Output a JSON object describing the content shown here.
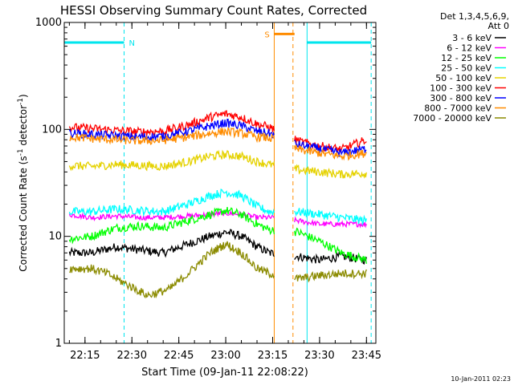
{
  "chart_data": {
    "type": "line",
    "title": "HESSI Observing Summary Count Rates, Corrected",
    "xlabel": "Start Time (09-Jan-11 22:08:22)",
    "ylabel": "Corrected Count Rate (s",
    "ylabel_sup1": "-1",
    "ylabel_mid": " detector",
    "ylabel_sup2": "-1",
    "ylabel_end": ")",
    "yscale": "log",
    "ylim": [
      1,
      1000
    ],
    "xlim": [
      "22:08:22",
      "23:48:00"
    ],
    "x_ticks": [
      "22:15",
      "22:30",
      "22:45",
      "23:00",
      "23:15",
      "23:30",
      "23:45"
    ],
    "y_ticks": [
      "1",
      "10",
      "100",
      "1000"
    ],
    "grid": false,
    "legend_position": "right",
    "legend_header": [
      "Det 1,3,4,5,6,9,",
      "Att 0"
    ],
    "footer_date": "10-Jan-2011 02:23",
    "flags": [
      {
        "label": "N",
        "color": "#00e5ee",
        "start": "22:08:22",
        "end": "22:27:30",
        "level": 650
      },
      {
        "label": "S",
        "color": "#ff8c00",
        "start": "23:15:30",
        "end": "23:22:00",
        "level": 780
      },
      {
        "label": "",
        "color": "#00e5ee",
        "start": "23:26:00",
        "end": "23:46:30",
        "level": 650
      }
    ],
    "vertical_markers": [
      {
        "time": "22:08:22",
        "color": "#00e5ee",
        "style": "solid"
      },
      {
        "time": "22:27:30",
        "color": "#00e5ee",
        "style": "dashed"
      },
      {
        "time": "23:15:30",
        "color": "#ff8c00",
        "style": "solid"
      },
      {
        "time": "23:21:30",
        "color": "#ff8c00",
        "style": "dashed"
      },
      {
        "time": "23:26:00",
        "color": "#00e5ee",
        "style": "solid"
      },
      {
        "time": "23:46:30",
        "color": "#00e5ee",
        "style": "dashed"
      }
    ],
    "data_gap": [
      "23:15:30",
      "23:22:00"
    ],
    "series": [
      {
        "name": "3 - 6 keV",
        "color": "#000000",
        "points": [
          [
            "22:10",
            7
          ],
          [
            "22:17",
            7
          ],
          [
            "22:25",
            8
          ],
          [
            "22:32",
            7.5
          ],
          [
            "22:40",
            7
          ],
          [
            "22:48",
            8.5
          ],
          [
            "22:55",
            10
          ],
          [
            "23:00",
            11
          ],
          [
            "23:05",
            10
          ],
          [
            "23:10",
            8
          ],
          [
            "23:14",
            7
          ],
          [
            "23:23",
            6.5
          ],
          [
            "23:30",
            6
          ],
          [
            "23:37",
            6.5
          ],
          [
            "23:45",
            6
          ]
        ]
      },
      {
        "name": "6 - 12 keV",
        "color": "#ff00ff",
        "points": [
          [
            "22:10",
            16
          ],
          [
            "22:17",
            15
          ],
          [
            "22:25",
            15.5
          ],
          [
            "22:32",
            15
          ],
          [
            "22:40",
            15
          ],
          [
            "22:48",
            15.5
          ],
          [
            "22:55",
            16
          ],
          [
            "23:00",
            16.5
          ],
          [
            "23:05",
            16
          ],
          [
            "23:10",
            15
          ],
          [
            "23:14",
            15
          ],
          [
            "23:23",
            14
          ],
          [
            "23:30",
            13
          ],
          [
            "23:37",
            13
          ],
          [
            "23:45",
            13
          ]
        ]
      },
      {
        "name": "12 - 25 keV",
        "color": "#00ff00",
        "points": [
          [
            "22:10",
            9.5
          ],
          [
            "22:17",
            10
          ],
          [
            "22:25",
            12
          ],
          [
            "22:32",
            12.5
          ],
          [
            "22:40",
            12
          ],
          [
            "22:48",
            14
          ],
          [
            "22:55",
            16
          ],
          [
            "23:00",
            17.5
          ],
          [
            "23:05",
            16
          ],
          [
            "23:10",
            13
          ],
          [
            "23:14",
            11.5
          ],
          [
            "23:23",
            11
          ],
          [
            "23:30",
            9
          ],
          [
            "23:37",
            7
          ],
          [
            "23:45",
            6
          ]
        ]
      },
      {
        "name": "25 - 50 keV",
        "color": "#00ffff",
        "points": [
          [
            "22:10",
            17
          ],
          [
            "22:17",
            17
          ],
          [
            "22:25",
            18
          ],
          [
            "22:32",
            17.5
          ],
          [
            "22:40",
            17
          ],
          [
            "22:48",
            20
          ],
          [
            "22:55",
            24
          ],
          [
            "23:00",
            26
          ],
          [
            "23:05",
            24
          ],
          [
            "23:10",
            19
          ],
          [
            "23:14",
            17
          ],
          [
            "23:23",
            17
          ],
          [
            "23:30",
            16
          ],
          [
            "23:37",
            15
          ],
          [
            "23:45",
            14
          ]
        ]
      },
      {
        "name": "50 - 100 keV",
        "color": "#e5d200",
        "points": [
          [
            "22:10",
            46
          ],
          [
            "22:17",
            45
          ],
          [
            "22:25",
            47
          ],
          [
            "22:32",
            46
          ],
          [
            "22:40",
            45
          ],
          [
            "22:48",
            50
          ],
          [
            "22:55",
            56
          ],
          [
            "23:00",
            58
          ],
          [
            "23:05",
            56
          ],
          [
            "23:10",
            50
          ],
          [
            "23:14",
            47
          ],
          [
            "23:23",
            42
          ],
          [
            "23:30",
            40
          ],
          [
            "23:37",
            38
          ],
          [
            "23:45",
            39
          ]
        ]
      },
      {
        "name": "100 - 300 keV",
        "color": "#ff0000",
        "points": [
          [
            "22:10",
            105
          ],
          [
            "22:17",
            102
          ],
          [
            "22:25",
            98
          ],
          [
            "22:32",
            95
          ],
          [
            "22:40",
            96
          ],
          [
            "22:48",
            110
          ],
          [
            "22:55",
            130
          ],
          [
            "23:00",
            140
          ],
          [
            "23:05",
            130
          ],
          [
            "23:10",
            112
          ],
          [
            "23:14",
            105
          ],
          [
            "23:23",
            78
          ],
          [
            "23:30",
            70
          ],
          [
            "23:37",
            65
          ],
          [
            "23:45",
            80
          ]
        ]
      },
      {
        "name": "300 - 800 keV",
        "color": "#0000ff",
        "points": [
          [
            "22:10",
            92
          ],
          [
            "22:17",
            90
          ],
          [
            "22:25",
            87
          ],
          [
            "22:32",
            85
          ],
          [
            "22:40",
            86
          ],
          [
            "22:48",
            96
          ],
          [
            "22:55",
            108
          ],
          [
            "23:00",
            115
          ],
          [
            "23:05",
            108
          ],
          [
            "23:10",
            96
          ],
          [
            "23:14",
            92
          ],
          [
            "23:23",
            72
          ],
          [
            "23:30",
            66
          ],
          [
            "23:37",
            60
          ],
          [
            "23:45",
            66
          ]
        ]
      },
      {
        "name": "800 - 7000 keV",
        "color": "#ff8c00",
        "points": [
          [
            "22:10",
            85
          ],
          [
            "22:17",
            82
          ],
          [
            "22:25",
            80
          ],
          [
            "22:32",
            78
          ],
          [
            "22:40",
            79
          ],
          [
            "22:48",
            85
          ],
          [
            "22:55",
            92
          ],
          [
            "23:00",
            96
          ],
          [
            "23:05",
            92
          ],
          [
            "23:10",
            85
          ],
          [
            "23:14",
            83
          ],
          [
            "23:23",
            65
          ],
          [
            "23:30",
            60
          ],
          [
            "23:37",
            56
          ],
          [
            "23:45",
            60
          ]
        ]
      },
      {
        "name": "7000 - 20000 keV",
        "color": "#8b8b00",
        "points": [
          [
            "22:10",
            5
          ],
          [
            "22:17",
            5
          ],
          [
            "22:22",
            4.5
          ],
          [
            "22:28",
            3.6
          ],
          [
            "22:35",
            2.8
          ],
          [
            "22:42",
            3.2
          ],
          [
            "22:48",
            4.5
          ],
          [
            "22:55",
            7
          ],
          [
            "23:00",
            8.5
          ],
          [
            "23:05",
            7
          ],
          [
            "23:10",
            5
          ],
          [
            "23:14",
            4.5
          ],
          [
            "23:23",
            4
          ],
          [
            "23:30",
            4.3
          ],
          [
            "23:37",
            4.5
          ],
          [
            "23:45",
            4.5
          ]
        ]
      }
    ]
  }
}
